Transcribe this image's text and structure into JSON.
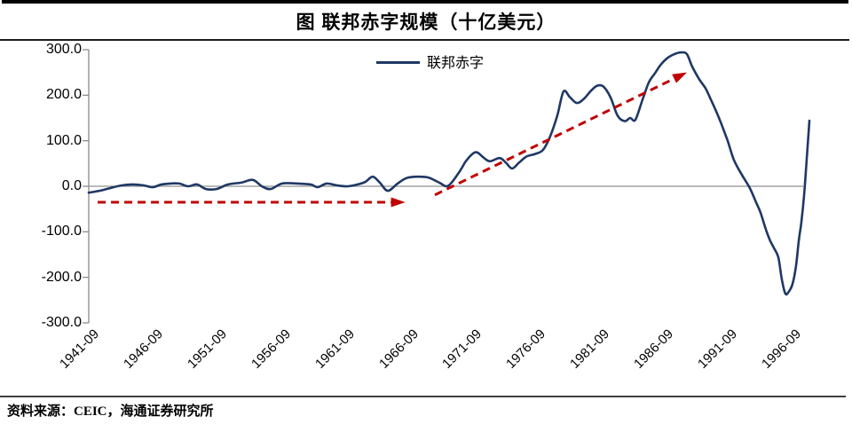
{
  "page": {
    "source_text": "资料来源：CEIC，海通证券研究所"
  },
  "colors": {
    "line": "#1f3864",
    "arrow": "#c00000",
    "zero_line": "#909090",
    "axis": "#8c8c8c",
    "rule_top": "#000000",
    "rule_bottom": "#3f3f3f"
  },
  "chart_data": {
    "type": "line",
    "title": "图 联邦赤字规模（十亿美元）",
    "unit": "十亿美元",
    "legend": [
      {
        "name": "联邦赤字",
        "color": "#1f3864"
      }
    ],
    "legend_position": "top-center",
    "grid": "zero-line-only",
    "ylim": [
      -300,
      300
    ],
    "y_tick_values": [
      300,
      200,
      100,
      0,
      -100,
      -200,
      -300
    ],
    "y_tick_labels": [
      "300.0",
      "200.0",
      "100.0",
      "0.0",
      "-100.0",
      "-200.0",
      "-300.0"
    ],
    "x_tick_labels": [
      "1941-09",
      "1946-09",
      "1951-09",
      "1956-09",
      "1961-09",
      "1966-09",
      "1971-09",
      "1976-09",
      "1981-09",
      "1986-09",
      "1991-09",
      "1996-09"
    ],
    "x_start_year": 1941.75,
    "x_end_year_approx": 1998.2,
    "series": [
      {
        "name": "联邦赤字",
        "color": "#1f3864",
        "points": [
          [
            1941.75,
            -14
          ],
          [
            1942.58,
            -10
          ],
          [
            1943.42,
            -4
          ],
          [
            1944.32,
            2
          ],
          [
            1945.23,
            4
          ],
          [
            1946.06,
            2
          ],
          [
            1946.76,
            -2
          ],
          [
            1947.45,
            4
          ],
          [
            1948.15,
            6
          ],
          [
            1948.84,
            6
          ],
          [
            1949.54,
            0
          ],
          [
            1950.23,
            4
          ],
          [
            1950.93,
            -6
          ],
          [
            1951.76,
            -6
          ],
          [
            1952.67,
            4
          ],
          [
            1953.71,
            8
          ],
          [
            1954.61,
            14
          ],
          [
            1955.31,
            0
          ],
          [
            1956.0,
            -6
          ],
          [
            1956.91,
            6
          ],
          [
            1958.09,
            6
          ],
          [
            1959.13,
            4
          ],
          [
            1959.69,
            -2
          ],
          [
            1960.38,
            6
          ],
          [
            1961.22,
            2
          ],
          [
            1962.05,
            0
          ],
          [
            1962.82,
            4
          ],
          [
            1963.44,
            10
          ],
          [
            1964.0,
            21
          ],
          [
            1964.56,
            8
          ],
          [
            1965.18,
            -10
          ],
          [
            1965.95,
            6
          ],
          [
            1966.64,
            18
          ],
          [
            1967.48,
            21
          ],
          [
            1968.38,
            19
          ],
          [
            1969.22,
            8
          ],
          [
            1969.91,
            1
          ],
          [
            1970.75,
            30
          ],
          [
            1971.3,
            55
          ],
          [
            1971.86,
            72
          ],
          [
            1972.21,
            74
          ],
          [
            1972.69,
            63
          ],
          [
            1973.18,
            55
          ],
          [
            1973.94,
            62
          ],
          [
            1974.43,
            52
          ],
          [
            1974.92,
            39
          ],
          [
            1975.47,
            52
          ],
          [
            1976.03,
            65
          ],
          [
            1976.72,
            71
          ],
          [
            1977.35,
            80
          ],
          [
            1977.91,
            110
          ],
          [
            1978.46,
            155
          ],
          [
            1978.95,
            208
          ],
          [
            1979.44,
            196
          ],
          [
            1979.99,
            183
          ],
          [
            1980.55,
            192
          ],
          [
            1981.11,
            210
          ],
          [
            1981.59,
            221
          ],
          [
            1982.08,
            219
          ],
          [
            1982.64,
            195
          ],
          [
            1983.19,
            155
          ],
          [
            1983.75,
            143
          ],
          [
            1984.17,
            150
          ],
          [
            1984.58,
            146
          ],
          [
            1985.14,
            190
          ],
          [
            1985.63,
            228
          ],
          [
            1986.11,
            248
          ],
          [
            1986.6,
            268
          ],
          [
            1987.16,
            283
          ],
          [
            1987.71,
            291
          ],
          [
            1988.2,
            294
          ],
          [
            1988.62,
            290
          ],
          [
            1989.03,
            263
          ],
          [
            1989.59,
            235
          ],
          [
            1990.08,
            215
          ],
          [
            1990.42,
            195
          ],
          [
            1990.91,
            165
          ],
          [
            1991.33,
            136
          ],
          [
            1991.81,
            100
          ],
          [
            1992.3,
            58
          ],
          [
            1992.93,
            25
          ],
          [
            1993.55,
            -4
          ],
          [
            1994.04,
            -35
          ],
          [
            1994.39,
            -58
          ],
          [
            1994.81,
            -95
          ],
          [
            1995.15,
            -120
          ],
          [
            1995.43,
            -135
          ],
          [
            1995.78,
            -156
          ],
          [
            1996.06,
            -205
          ],
          [
            1996.34,
            -236
          ],
          [
            1996.61,
            -231
          ],
          [
            1996.89,
            -215
          ],
          [
            1997.17,
            -175
          ],
          [
            1997.38,
            -120
          ],
          [
            1997.59,
            -78
          ],
          [
            1997.8,
            -20
          ],
          [
            1998.01,
            60
          ],
          [
            1998.22,
            144
          ]
        ]
      }
    ],
    "annotations": [
      {
        "type": "arrow",
        "style": "dashed",
        "color": "#c00000",
        "from": [
          1942.45,
          -35
        ],
        "to": [
          1966.55,
          -35
        ]
      },
      {
        "type": "arrow",
        "style": "dashed",
        "color": "#c00000",
        "from": [
          1968.87,
          -19
        ],
        "to": [
          1988.62,
          250
        ]
      }
    ]
  }
}
